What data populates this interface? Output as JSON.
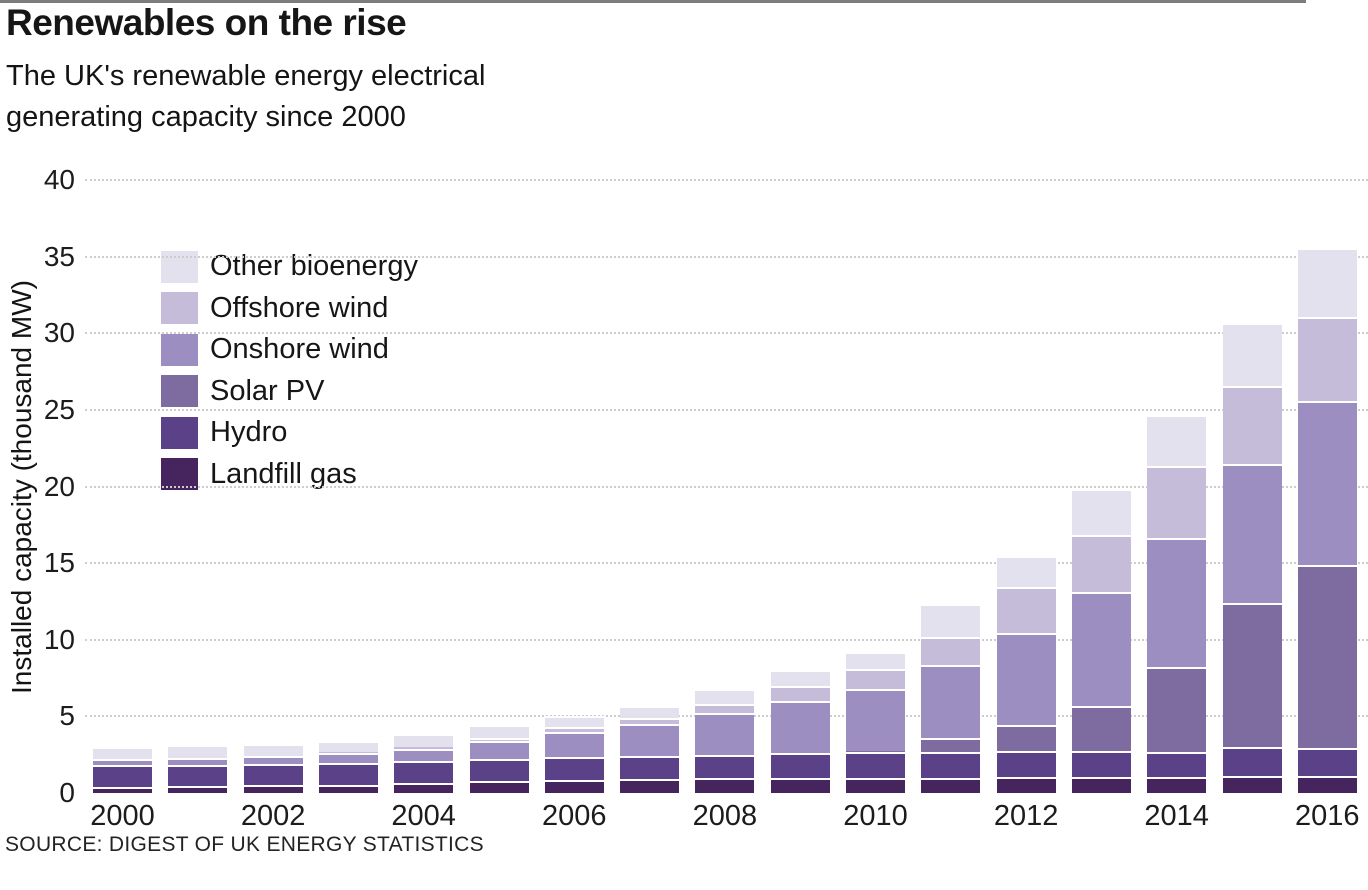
{
  "title": "Renewables on the rise",
  "subtitle": {
    "line1": "The UK's renewable energy electrical",
    "line2": "generating capacity since 2000"
  },
  "source": "SOURCE: DIGEST OF UK ENERGY STATISTICS",
  "chart_data": {
    "type": "bar",
    "stacked": true,
    "title": "Renewables on the rise",
    "subtitle": "The UK's renewable energy electrical generating capacity since 2000",
    "xlabel": "",
    "ylabel": "Installed capacity (thousand MW)",
    "ylim": [
      0,
      40
    ],
    "yticks": [
      0,
      5,
      10,
      15,
      20,
      25,
      30,
      35,
      40
    ],
    "grid": "horizontal-dotted",
    "legend_position": "upper-left-inside",
    "categories": [
      2000,
      2001,
      2002,
      2003,
      2004,
      2005,
      2006,
      2007,
      2008,
      2009,
      2010,
      2011,
      2012,
      2013,
      2014,
      2015,
      2016
    ],
    "xtick_labels": [
      "2000",
      "2002",
      "2004",
      "2006",
      "2008",
      "2010",
      "2012",
      "2014",
      "2016"
    ],
    "series_note": "series listed bottom-to-top of stack; values in thousand MW",
    "series": [
      {
        "name": "Landfill gas",
        "color": "#46245e",
        "values": [
          0.4,
          0.45,
          0.5,
          0.55,
          0.65,
          0.8,
          0.85,
          0.9,
          0.95,
          1.0,
          1.0,
          1.0,
          1.04,
          1.06,
          1.05,
          1.1,
          1.1
        ]
      },
      {
        "name": "Hydro",
        "color": "#5b4288",
        "values": [
          1.4,
          1.4,
          1.4,
          1.4,
          1.45,
          1.45,
          1.5,
          1.5,
          1.55,
          1.6,
          1.65,
          1.67,
          1.7,
          1.71,
          1.6,
          1.9,
          1.85
        ]
      },
      {
        "name": "Solar PV",
        "color": "#7e6ba0",
        "values": [
          0.0,
          0.0,
          0.0,
          0.0,
          0.0,
          0.0,
          0.0,
          0.0,
          0.0,
          0.0,
          0.08,
          0.95,
          1.7,
          2.9,
          5.6,
          9.4,
          11.95
        ]
      },
      {
        "name": "Onshore wind",
        "color": "#9c8ec0",
        "values": [
          0.4,
          0.45,
          0.5,
          0.65,
          0.8,
          1.15,
          1.65,
          2.1,
          2.7,
          3.4,
          4.05,
          4.7,
          6.0,
          7.45,
          8.4,
          9.1,
          10.7
        ]
      },
      {
        "name": "Offshore wind",
        "color": "#c5bcda",
        "values": [
          0.0,
          0.0,
          0.0,
          0.06,
          0.12,
          0.21,
          0.3,
          0.4,
          0.6,
          0.95,
          1.34,
          1.84,
          3.0,
          3.7,
          4.7,
          5.05,
          5.45
        ]
      },
      {
        "name": "Other bioenergy",
        "color": "#e4e1ee",
        "values": [
          0.8,
          0.8,
          0.8,
          0.75,
          0.8,
          0.85,
          0.7,
          0.75,
          1.0,
          1.05,
          1.08,
          2.15,
          2.0,
          3.0,
          3.3,
          4.15,
          4.5
        ]
      }
    ],
    "totals": [
      3.0,
      3.1,
      3.2,
      3.41,
      3.82,
      4.46,
      5.0,
      5.65,
      6.8,
      8.0,
      9.2,
      12.31,
      15.44,
      19.82,
      24.65,
      30.7,
      35.55
    ],
    "legend": [
      {
        "label": "Other bioenergy",
        "color": "#e4e1ee"
      },
      {
        "label": "Offshore wind",
        "color": "#c5bcda"
      },
      {
        "label": "Onshore wind",
        "color": "#9c8ec0"
      },
      {
        "label": "Solar PV",
        "color": "#7e6ba0"
      },
      {
        "label": "Hydro",
        "color": "#5b4288"
      },
      {
        "label": "Landfill gas",
        "color": "#46245e"
      }
    ]
  }
}
